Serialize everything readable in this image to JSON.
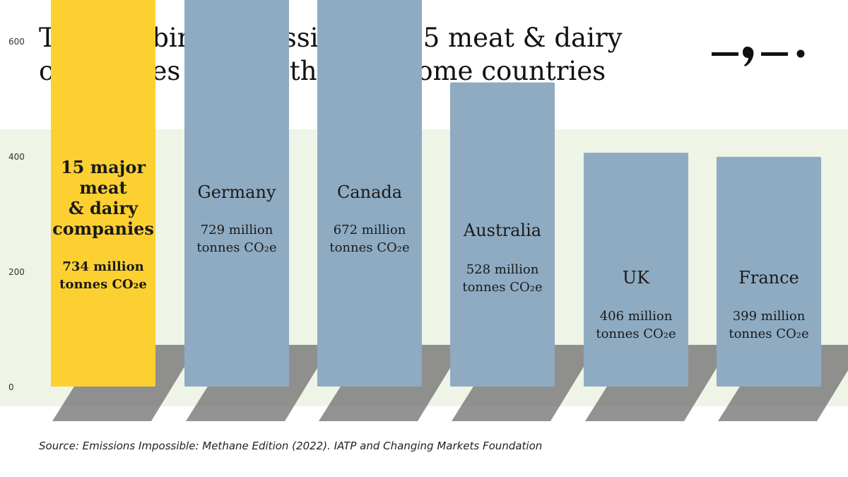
{
  "title": {
    "line1": "The combined emissions of 15 meat & dairy",
    "line2": "companies exceed those of some countries"
  },
  "source": "Source: Emissions Impossible: Methane Edition (2022). IATP and Changing Markets Foundation",
  "colors": {
    "highlight_bar": "#fdd032",
    "country_bar": "#8eabc2",
    "plot_background": "#eef4e6",
    "shadow": "#6f6f6f"
  },
  "logo_icon": "dash-comma-dash-dot-logo",
  "chart_data": {
    "type": "bar",
    "title": "The combined emissions of 15 meat & dairy companies exceed those of some countries",
    "ylabel": "",
    "xlabel": "",
    "ylim": [
      0,
      700
    ],
    "yticks": [
      0,
      200,
      400,
      600
    ],
    "grid": false,
    "categories": [
      "15 major meat & dairy companies",
      "Germany",
      "Canada",
      "Australia",
      "UK",
      "France"
    ],
    "values": [
      734,
      729,
      672,
      528,
      406,
      399
    ],
    "unit": "million tonnes CO₂e",
    "highlight_index": 0
  },
  "bars": [
    {
      "name_lines": [
        "15 major",
        "meat",
        "& dairy",
        "companies"
      ],
      "value_lines": [
        "734 million",
        "tonnes CO₂e"
      ]
    },
    {
      "name_lines": [
        "Germany"
      ],
      "value_lines": [
        "729 million",
        "tonnes CO₂e"
      ]
    },
    {
      "name_lines": [
        "Canada"
      ],
      "value_lines": [
        "672 million",
        "tonnes CO₂e"
      ]
    },
    {
      "name_lines": [
        "Australia"
      ],
      "value_lines": [
        "528 million",
        "tonnes CO₂e"
      ]
    },
    {
      "name_lines": [
        "UK"
      ],
      "value_lines": [
        "406 million",
        "tonnes CO₂e"
      ]
    },
    {
      "name_lines": [
        "France"
      ],
      "value_lines": [
        "399 million",
        "tonnes CO₂e"
      ]
    }
  ]
}
